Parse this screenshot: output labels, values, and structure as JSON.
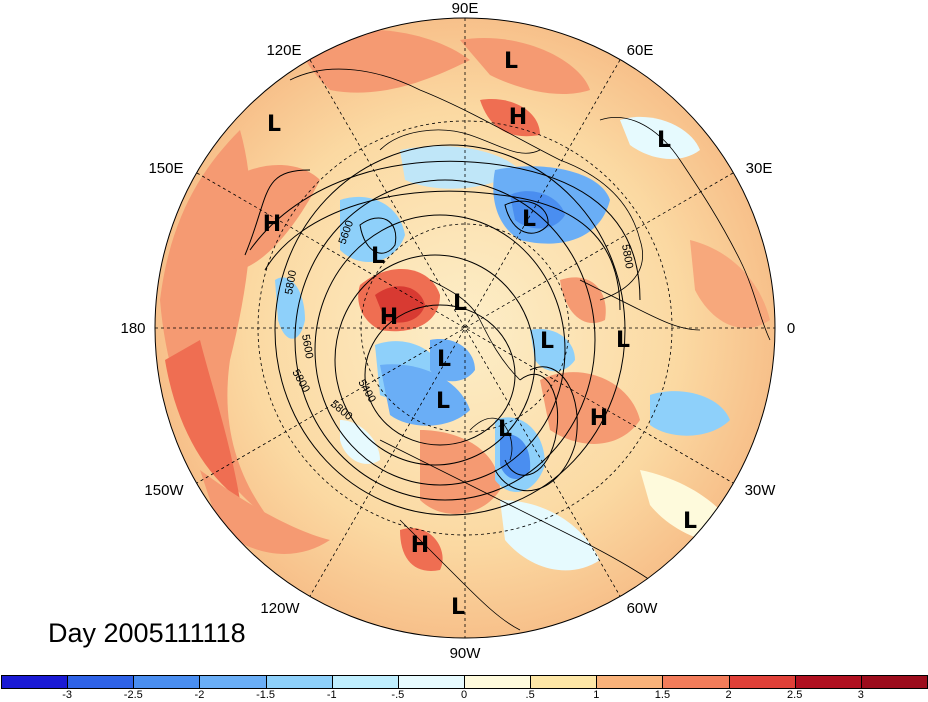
{
  "title": "Day 2005111118",
  "longitude_labels": {
    "top": "90E",
    "tl1": "120E",
    "tr1": "60E",
    "left_up": "150E",
    "right_up": "30E",
    "left": "180",
    "right": "0",
    "left_dn": "150W",
    "right_dn": "30W",
    "bl": "120W",
    "br": "60W",
    "bottom": "90W"
  },
  "contour_labels": [
    "5600",
    "5800",
    "5600",
    "5800",
    "5800",
    "5400",
    "5800"
  ],
  "pressure_centers": [
    {
      "type": "L"
    },
    {
      "type": "H"
    },
    {
      "type": "L"
    },
    {
      "type": "L"
    },
    {
      "type": "H"
    },
    {
      "type": "L"
    },
    {
      "type": "L"
    },
    {
      "type": "H"
    },
    {
      "type": "L"
    },
    {
      "type": "L"
    },
    {
      "type": "L"
    },
    {
      "type": "L"
    },
    {
      "type": "L"
    },
    {
      "type": "H"
    },
    {
      "type": "L"
    },
    {
      "type": "L"
    },
    {
      "type": "H"
    },
    {
      "type": "L"
    }
  ],
  "colorbar": {
    "ticks": [
      "-3",
      "-2.5",
      "-2",
      "-1.5",
      "-1",
      "-.5",
      "0",
      ".5",
      "1",
      "1.5",
      "2",
      "2.5",
      "3"
    ],
    "colors": [
      "#1a1ad4",
      "#2e62e6",
      "#4a8ef0",
      "#6aaef6",
      "#8ed0fa",
      "#bfeefe",
      "#e6fafe",
      "#fefadc",
      "#fde6a6",
      "#f9b27a",
      "#f27c5a",
      "#e04038",
      "#b01020",
      "#9c0c1c"
    ]
  }
}
